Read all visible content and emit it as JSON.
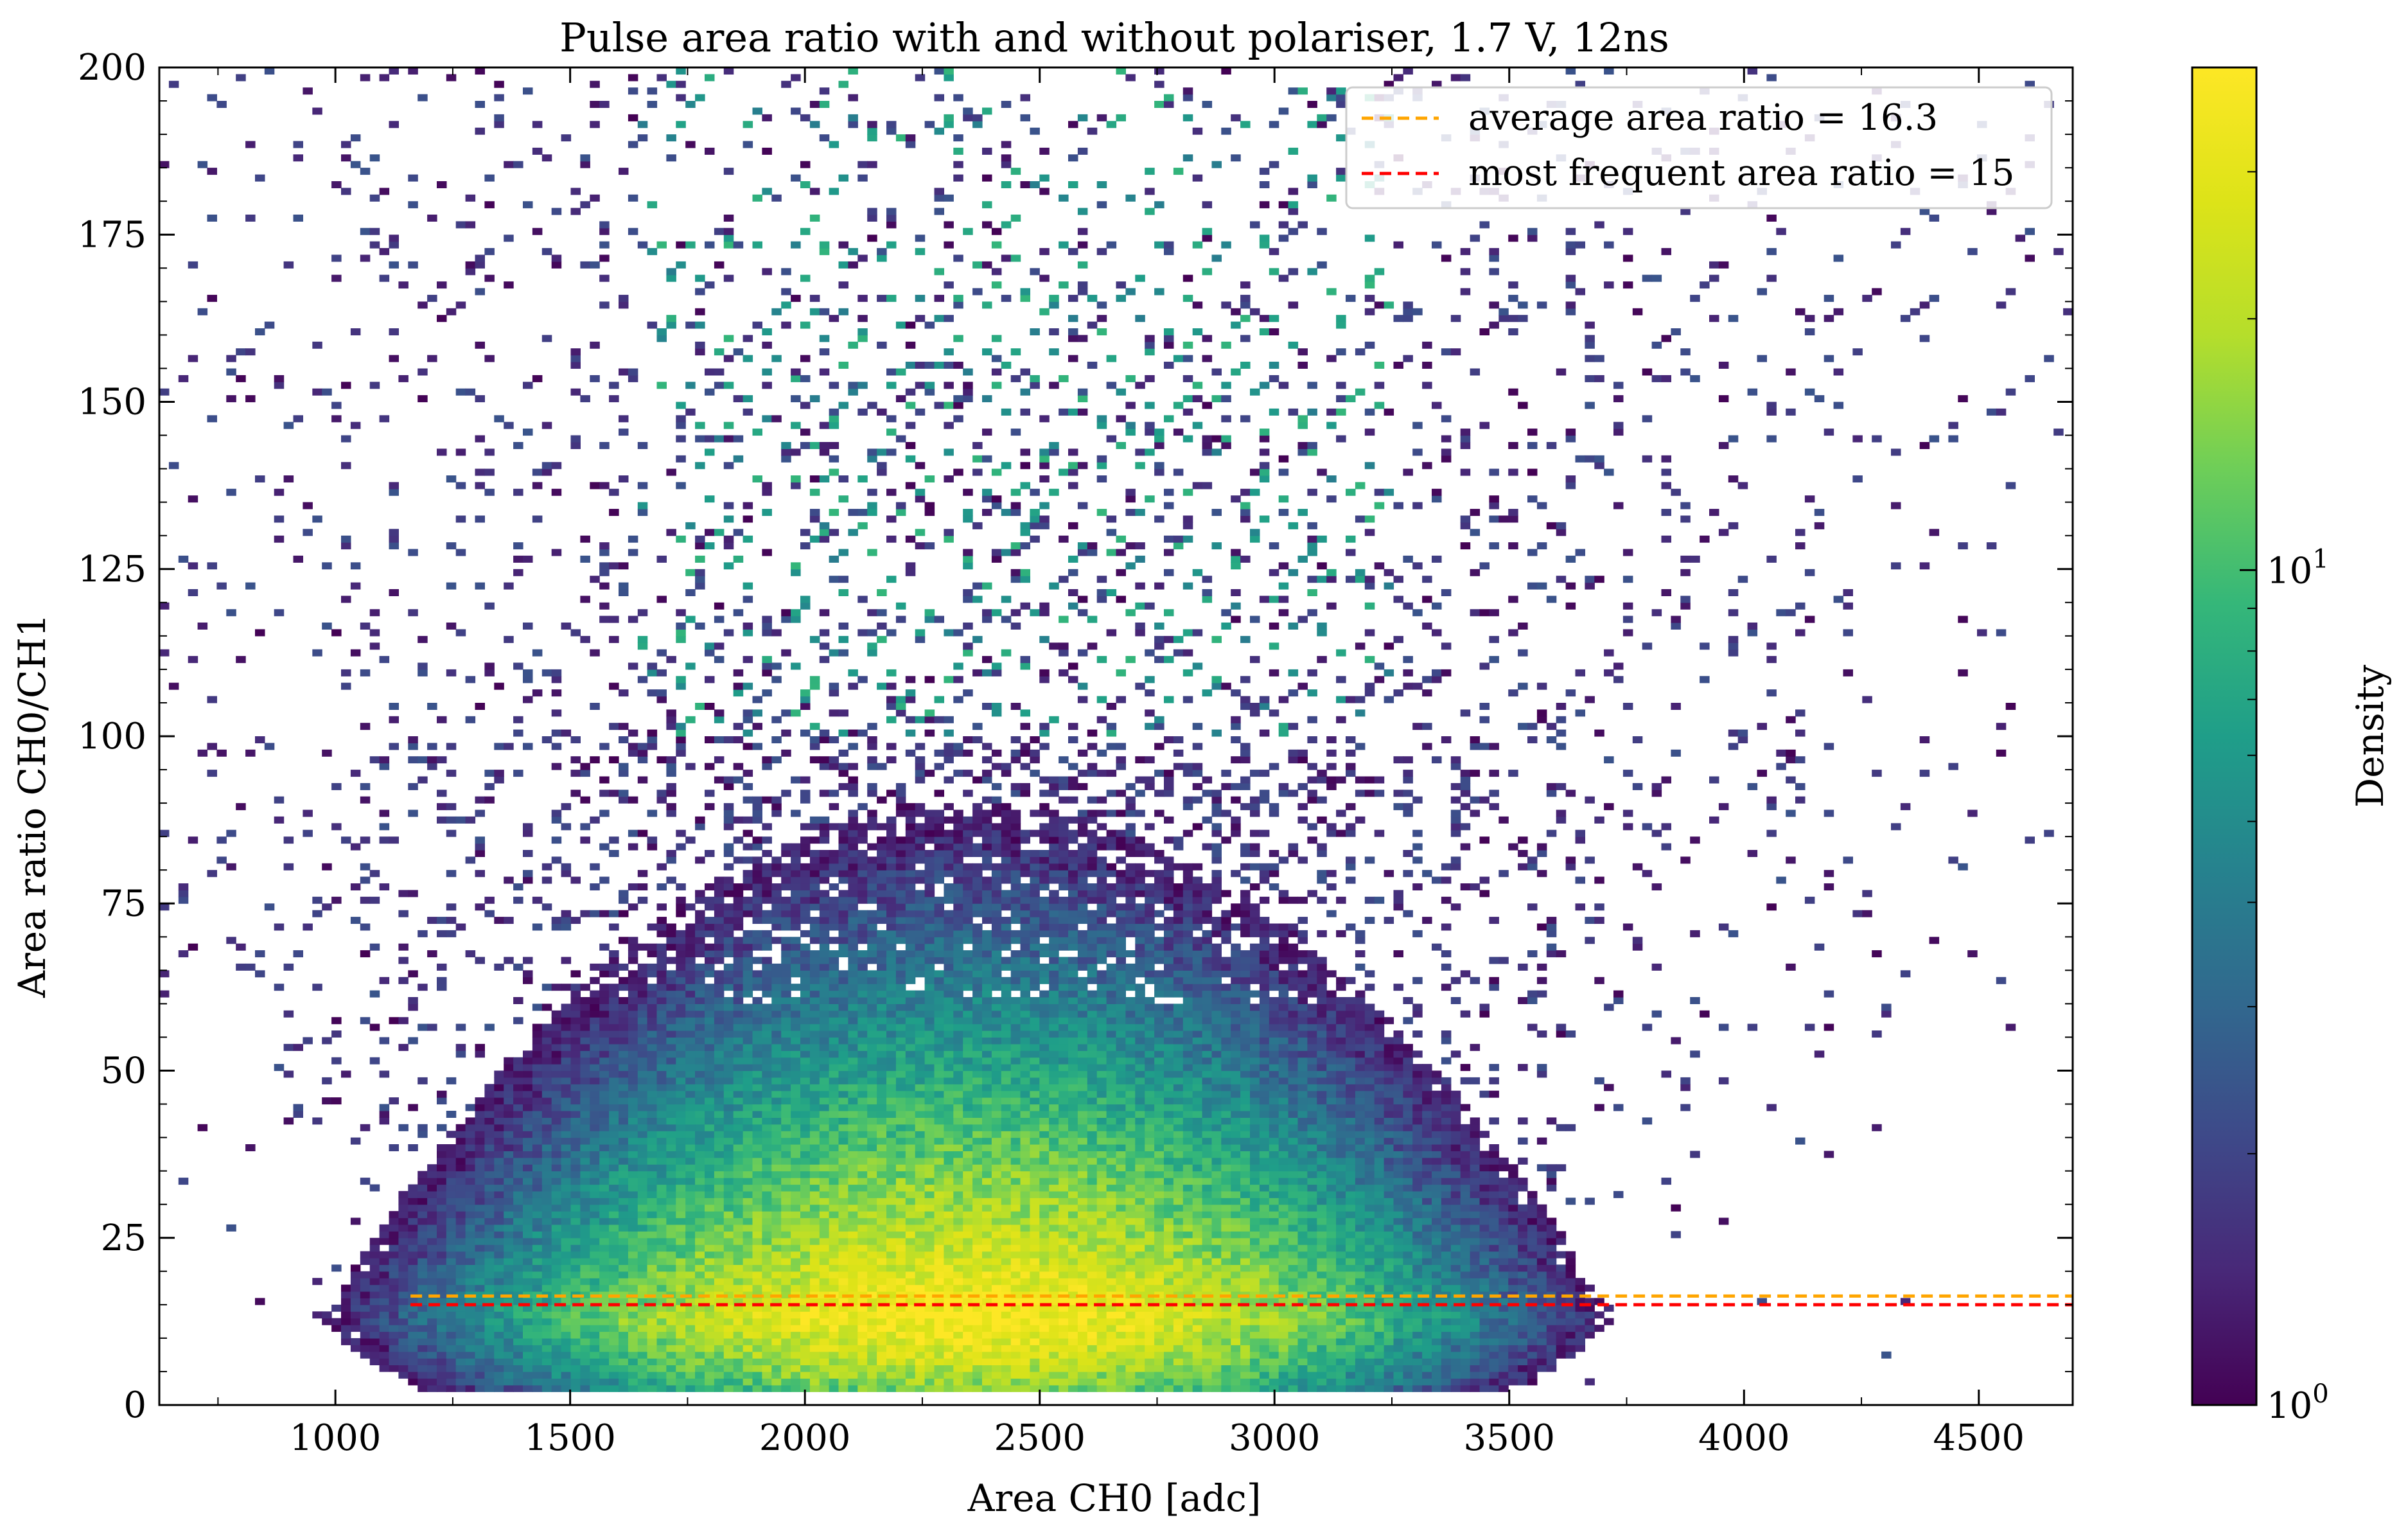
{
  "chart_data": {
    "type": "heatmap",
    "title": "Pulse area ratio with and without polariser, 1.7 V, 12ns",
    "xlabel": "Area CH0 [adc]",
    "ylabel": "Area ratio CH0/CH1",
    "xlim": [
      625,
      4700
    ],
    "ylim": [
      0,
      200
    ],
    "xticks": [
      "1000",
      "1500",
      "2000",
      "2500",
      "3000",
      "3500",
      "4000",
      "4500"
    ],
    "yticks": [
      "0",
      "25",
      "50",
      "75",
      "100",
      "125",
      "150",
      "175",
      "200"
    ],
    "colorbar": {
      "label": "Density",
      "scale": "log",
      "range": [
        1,
        40
      ],
      "colormap": "viridis",
      "major_ticks": [
        {
          "value": 1,
          "label": "10^0"
        },
        {
          "value": 10,
          "label": "10^1"
        }
      ],
      "minor_ticks": [
        2,
        3,
        4,
        5,
        6,
        7,
        8,
        9,
        20,
        30,
        40
      ]
    },
    "histogram_approx": {
      "bins_x": 200,
      "bins_y": 200,
      "peak_x": 2350,
      "peak_y": 13,
      "peak_density": 40,
      "x_spread": 520,
      "floor_y": 2,
      "diagonal_band_region_y": [
        100,
        200
      ]
    },
    "reference_lines": [
      {
        "name": "average area ratio = 16.3",
        "y": 16.3,
        "color": "#FFA500",
        "style": "dashed",
        "x_range": [
          1160,
          4700
        ]
      },
      {
        "name": "most frequent area ratio = 15",
        "y": 15,
        "color": "#FF0000",
        "style": "dashed",
        "x_range": [
          1160,
          4700
        ]
      }
    ],
    "legend": {
      "placement": "top-right",
      "entries": [
        "average area ratio = 16.3",
        "most frequent area ratio = 15"
      ]
    },
    "grid": false,
    "tick_direction": "in"
  }
}
